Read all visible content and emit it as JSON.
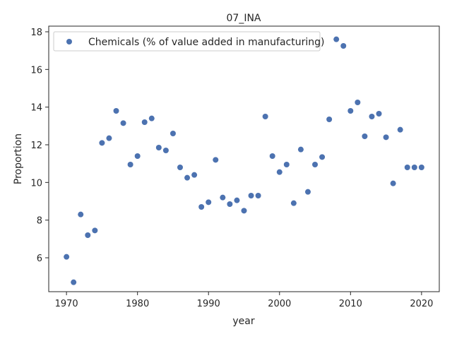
{
  "chart_data": {
    "type": "scatter",
    "title": "07_INA",
    "xlabel": "year",
    "ylabel": "Proportion",
    "xlim": [
      1967.5,
      2022.5
    ],
    "ylim": [
      4.2,
      18.3
    ],
    "xticks": [
      1970,
      1980,
      1990,
      2000,
      2010,
      2020
    ],
    "yticks": [
      6,
      8,
      10,
      12,
      14,
      16,
      18
    ],
    "legend_position": "top-left",
    "grid": false,
    "color": "#4c72b0",
    "series": [
      {
        "name": "Chemicals (% of value added in manufacturing)",
        "x": [
          1970,
          1971,
          1972,
          1973,
          1974,
          1975,
          1976,
          1977,
          1978,
          1979,
          1980,
          1981,
          1982,
          1983,
          1984,
          1985,
          1986,
          1987,
          1988,
          1989,
          1990,
          1991,
          1992,
          1993,
          1994,
          1995,
          1996,
          1997,
          1998,
          1999,
          2000,
          2001,
          2002,
          2003,
          2004,
          2005,
          2006,
          2007,
          2008,
          2009,
          2010,
          2011,
          2012,
          2013,
          2014,
          2015,
          2016,
          2017,
          2018,
          2019,
          2020
        ],
        "y": [
          6.05,
          4.7,
          8.3,
          7.2,
          7.45,
          12.1,
          12.35,
          13.8,
          13.15,
          10.95,
          11.4,
          13.2,
          13.4,
          11.85,
          11.7,
          12.6,
          10.8,
          10.25,
          10.4,
          8.7,
          8.95,
          11.2,
          9.2,
          8.85,
          9.05,
          8.5,
          9.3,
          9.3,
          13.5,
          11.4,
          10.55,
          10.95,
          8.9,
          11.75,
          9.5,
          10.95,
          11.35,
          13.35,
          17.6,
          17.25,
          13.8,
          14.25,
          12.45,
          13.5,
          13.65,
          12.4,
          9.95,
          12.8,
          10.8,
          10.8,
          10.8
        ]
      }
    ]
  }
}
